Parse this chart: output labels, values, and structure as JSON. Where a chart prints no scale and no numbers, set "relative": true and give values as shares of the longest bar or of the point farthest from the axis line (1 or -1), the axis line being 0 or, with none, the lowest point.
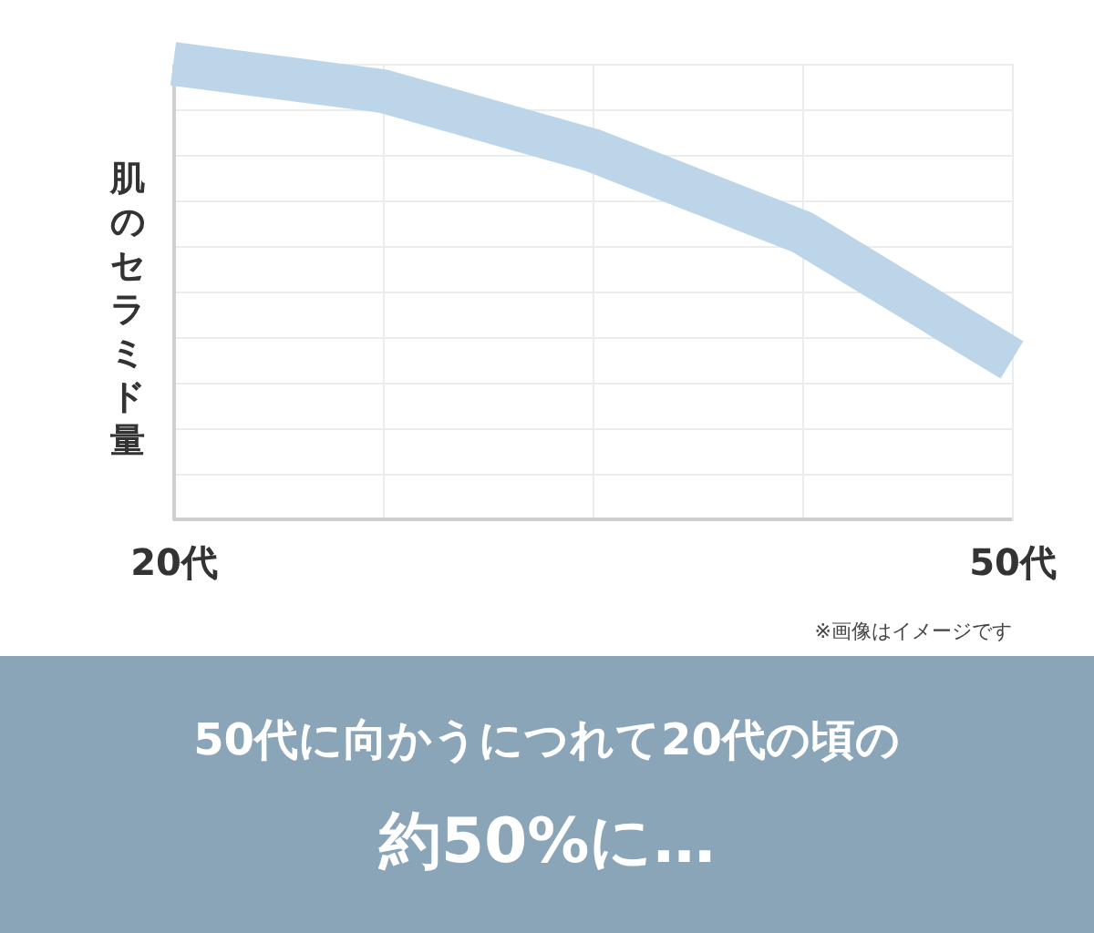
{
  "chart_data": {
    "type": "line",
    "relative": true,
    "ylabel": "肌のセラミド量",
    "categories": [
      "20代",
      null,
      null,
      null,
      "50代"
    ],
    "series": [
      {
        "color": "#bcd5e8",
        "values": [
          1,
          0.94,
          0.81,
          0.63,
          0.35
        ]
      }
    ],
    "grid": true,
    "tick_labels": "x",
    "marker": "none",
    "line_style": "solid",
    "annotations": [
      "※画像はイメージです",
      "50代に向かうにつれて20代の頃の",
      "約50%に…"
    ]
  }
}
